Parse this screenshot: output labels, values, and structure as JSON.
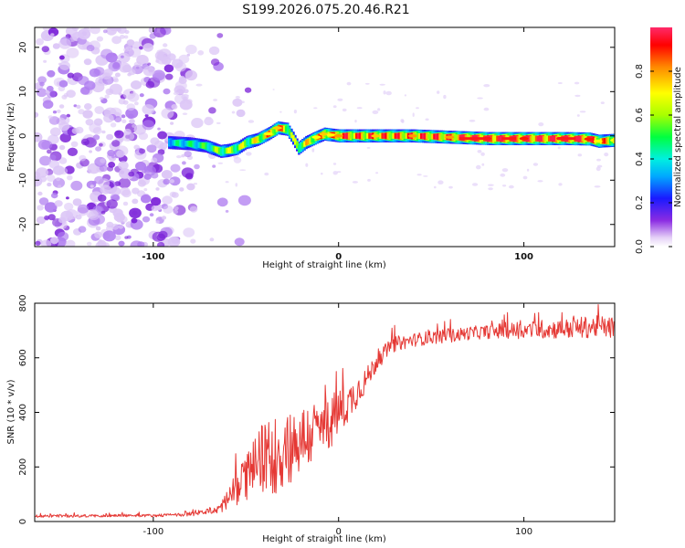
{
  "figure_title": "S199.2026.075.20.46.R21",
  "chart_data": [
    {
      "type": "heatmap",
      "title": "S199.2026.075.20.46.R21",
      "xlabel": "Height of straight line (km)",
      "ylabel": "Frequency (Hz)",
      "xlim": [
        -164,
        149
      ],
      "ylim": [
        -25,
        24.5
      ],
      "xticks": [
        -100,
        0,
        100
      ],
      "yticks": [
        -20,
        -10,
        0,
        10,
        20
      ],
      "ridge": {
        "description": "dominant narrowband frequency track",
        "x": [
          -92,
          -80,
          -72,
          -64,
          -60,
          -55,
          -50,
          -44,
          -38,
          -33,
          -28,
          -25,
          -22,
          -18,
          -12,
          -8,
          -4,
          0,
          20,
          40,
          60,
          80,
          100,
          120,
          135,
          140,
          149
        ],
        "y": [
          -1.5,
          -1.8,
          -2.3,
          -3.5,
          -3.3,
          -2.8,
          -1.5,
          -0.8,
          0.5,
          1.8,
          1.5,
          -0.5,
          -2.8,
          -1.5,
          -0.3,
          0.4,
          0.2,
          0,
          0,
          0,
          -0.3,
          -0.6,
          -0.6,
          -0.6,
          -0.7,
          -1.2,
          -1.0
        ],
        "peak_amplitude": [
          0.3,
          0.35,
          0.4,
          0.5,
          0.5,
          0.55,
          0.5,
          0.6,
          0.7,
          0.75,
          0.6,
          0.5,
          0.55,
          0.6,
          0.7,
          0.75,
          0.7,
          0.8,
          0.75,
          0.8,
          0.8,
          0.95,
          0.9,
          0.9,
          0.9,
          0.7,
          0.7
        ]
      },
      "noise_region_x": [
        -164,
        -70
      ],
      "colorbar": {
        "label": "Normalized spectral amplitude",
        "range": [
          0.0,
          1.0
        ],
        "ticks": [
          0.0,
          0.2,
          0.4,
          0.6,
          0.8
        ],
        "tick_labels": [
          "0.0",
          "0.2",
          "0.4",
          "0.6",
          "0.8"
        ]
      }
    },
    {
      "type": "line",
      "xlabel": "Height of straight line (km)",
      "ylabel": "SNR (10 * v/v)",
      "xlim": [
        -164,
        149
      ],
      "ylim": [
        0,
        800
      ],
      "xticks": [
        -100,
        0,
        100
      ],
      "yticks": [
        0,
        200,
        400,
        600,
        800
      ],
      "series": [
        {
          "name": "SNR",
          "color": "#e53935",
          "x": [
            -164,
            -140,
            -120,
            -100,
            -85,
            -75,
            -65,
            -60,
            -55,
            -50,
            -45,
            -40,
            -35,
            -30,
            -25,
            -20,
            -15,
            -10,
            -5,
            0,
            5,
            10,
            15,
            20,
            25,
            30,
            40,
            50,
            60,
            70,
            80,
            90,
            100,
            110,
            120,
            130,
            140,
            149
          ],
          "y": [
            20,
            20,
            22,
            22,
            25,
            30,
            45,
            80,
            120,
            160,
            200,
            240,
            240,
            260,
            280,
            300,
            320,
            340,
            360,
            400,
            430,
            480,
            520,
            580,
            620,
            650,
            665,
            675,
            680,
            690,
            695,
            700,
            700,
            705,
            705,
            710,
            715,
            710
          ],
          "noise_amplitude": [
            5,
            5,
            5,
            5,
            6,
            8,
            18,
            40,
            60,
            90,
            110,
            130,
            150,
            150,
            140,
            130,
            120,
            110,
            100,
            90,
            70,
            60,
            45,
            35,
            30,
            28,
            25,
            25,
            25,
            25,
            25,
            30,
            30,
            35,
            35,
            40,
            40,
            40
          ]
        }
      ]
    }
  ]
}
